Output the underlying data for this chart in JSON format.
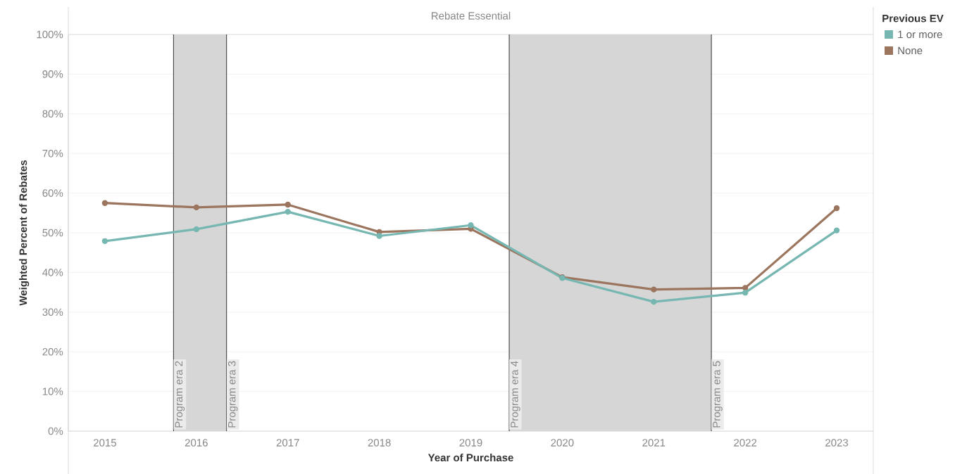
{
  "chart_data": {
    "type": "line",
    "title": "Rebate Essential",
    "xlabel": "Year of Purchase",
    "ylabel": "Weighted Percent of Rebates",
    "legend_title": "Previous EV",
    "x": [
      2015,
      2016,
      2017,
      2018,
      2019,
      2020,
      2021,
      2022,
      2023
    ],
    "series": [
      {
        "name": "1 or more",
        "color": "#76b7b2",
        "values": [
          47.9,
          50.9,
          55.3,
          49.2,
          51.9,
          38.6,
          32.6,
          34.9,
          50.6
        ]
      },
      {
        "name": "None",
        "color": "#9c755f",
        "values": [
          57.5,
          56.4,
          57.1,
          50.2,
          51.0,
          38.8,
          35.7,
          36.1,
          56.2
        ]
      }
    ],
    "xlim": [
      2014.6,
      2023.4
    ],
    "xticks": [
      2015,
      2016,
      2017,
      2018,
      2019,
      2020,
      2021,
      2022,
      2023
    ],
    "ylim": [
      0,
      100
    ],
    "yticks": [
      {
        "value": 0,
        "label": "0%"
      },
      {
        "value": 10,
        "label": "10%"
      },
      {
        "value": 20,
        "label": "20%"
      },
      {
        "value": 30,
        "label": "30%"
      },
      {
        "value": 40,
        "label": "40%"
      },
      {
        "value": 50,
        "label": "50%"
      },
      {
        "value": 60,
        "label": "60%"
      },
      {
        "value": 70,
        "label": "70%"
      },
      {
        "value": 80,
        "label": "80%"
      },
      {
        "value": 90,
        "label": "90%"
      },
      {
        "value": 100,
        "label": "100%"
      }
    ],
    "bands": [
      {
        "axis": "x",
        "from": 2015.75,
        "to": 2016.33,
        "color": "#d6d6d6"
      },
      {
        "axis": "x",
        "from": 2019.42,
        "to": 2021.63,
        "color": "#d6d6d6"
      }
    ],
    "ref_lines": [
      {
        "axis": "x",
        "value": 2015.75,
        "label": "Program era 2",
        "color": "#000000"
      },
      {
        "axis": "x",
        "value": 2016.33,
        "label": "Program era 3",
        "color": "#000000"
      },
      {
        "axis": "x",
        "value": 2019.42,
        "label": "Program era 4",
        "color": "#000000"
      },
      {
        "axis": "x",
        "value": 2021.63,
        "label": "Program era 5",
        "color": "#000000"
      }
    ],
    "grid": "y",
    "legend": "top right",
    "marker": "circle",
    "line_style": "solid"
  }
}
